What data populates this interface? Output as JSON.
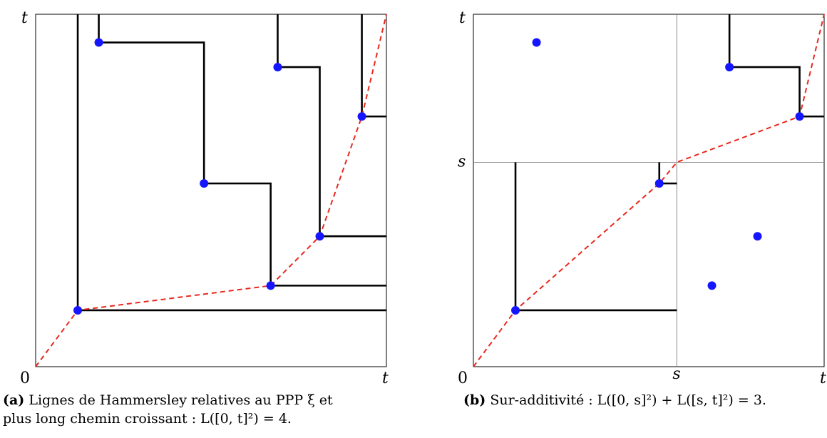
{
  "panel_a": {
    "axis": {
      "origin": "0",
      "x_end": "t",
      "y_end": "t"
    },
    "caption": {
      "tag": "(a)",
      "line1": "Lignes de Hammersley relatives au PPP ξ et",
      "line2": "plus long chemin croissant : L([0, t]²) = 4."
    },
    "points": [
      {
        "x": 0.12,
        "y": 0.16
      },
      {
        "x": 0.18,
        "y": 0.92
      },
      {
        "x": 0.48,
        "y": 0.52
      },
      {
        "x": 0.67,
        "y": 0.23
      },
      {
        "x": 0.69,
        "y": 0.85
      },
      {
        "x": 0.81,
        "y": 0.37
      },
      {
        "x": 0.93,
        "y": 0.71
      }
    ],
    "longest_path": [
      [
        0,
        0
      ],
      [
        0.12,
        0.16
      ],
      [
        0.67,
        0.23
      ],
      [
        0.81,
        0.37
      ],
      [
        0.93,
        0.71
      ],
      [
        1,
        1
      ]
    ],
    "hammersley_lines": [
      [
        [
          0.12,
          1
        ],
        [
          0.12,
          0.16
        ],
        [
          1,
          0.16
        ]
      ],
      [
        [
          0.18,
          1
        ],
        [
          0.18,
          0.92
        ],
        [
          0.48,
          0.92
        ],
        [
          0.48,
          0.52
        ],
        [
          0.67,
          0.52
        ],
        [
          0.67,
          0.23
        ],
        [
          1,
          0.23
        ]
      ],
      [
        [
          0.69,
          1
        ],
        [
          0.69,
          0.85
        ],
        [
          0.81,
          0.85
        ],
        [
          0.81,
          0.37
        ],
        [
          1,
          0.37
        ]
      ],
      [
        [
          0.93,
          1
        ],
        [
          0.93,
          0.71
        ],
        [
          1,
          0.71
        ]
      ]
    ],
    "path_color": "#e8281e",
    "point_color": "#1515ff"
  },
  "panel_b": {
    "axis": {
      "origin": "0",
      "x_mid": "s",
      "x_end": "t",
      "y_mid": "s",
      "y_end": "t"
    },
    "split": 0.58,
    "caption": {
      "tag": "(b)",
      "line1": "Sur-additivité : L([0, s]²) + L([s, t]²) = 3."
    },
    "points": [
      {
        "x": 0.12,
        "y": 0.16
      },
      {
        "x": 0.18,
        "y": 0.92
      },
      {
        "x": 0.53,
        "y": 0.52
      },
      {
        "x": 0.68,
        "y": 0.23
      },
      {
        "x": 0.73,
        "y": 0.85
      },
      {
        "x": 0.81,
        "y": 0.37
      },
      {
        "x": 0.93,
        "y": 0.71
      }
    ],
    "longest_path": [
      [
        0,
        0
      ],
      [
        0.12,
        0.16
      ],
      [
        0.53,
        0.52
      ],
      [
        0.58,
        0.58
      ],
      [
        0.93,
        0.71
      ],
      [
        1,
        1
      ]
    ],
    "hammersley_lines": [
      [
        [
          0.12,
          0.58
        ],
        [
          0.12,
          0.16
        ],
        [
          0.58,
          0.16
        ]
      ],
      [
        [
          0.53,
          0.58
        ],
        [
          0.53,
          0.52
        ],
        [
          0.58,
          0.52
        ]
      ],
      [
        [
          0.73,
          1
        ],
        [
          0.73,
          0.85
        ],
        [
          0.93,
          0.85
        ],
        [
          0.93,
          0.71
        ],
        [
          1,
          0.71
        ]
      ]
    ]
  }
}
